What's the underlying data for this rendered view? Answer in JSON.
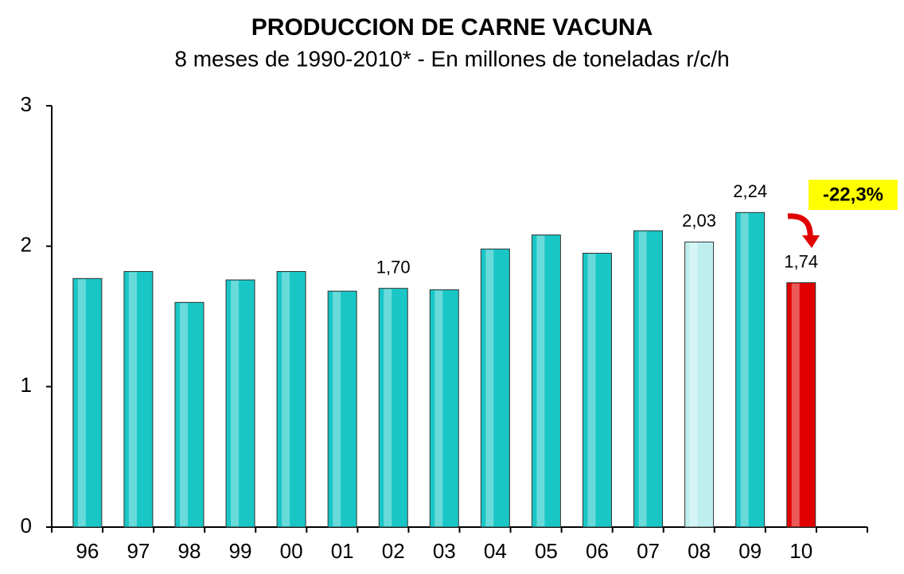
{
  "chart_data": {
    "type": "bar",
    "title": "PRODUCCION DE CARNE VACUNA",
    "subtitle": "8 meses de 1990-2010* - En millones de toneladas r/c/h",
    "categories": [
      "96",
      "97",
      "98",
      "99",
      "00",
      "01",
      "02",
      "03",
      "04",
      "05",
      "06",
      "07",
      "08",
      "09",
      "10"
    ],
    "values": [
      1.77,
      1.82,
      1.6,
      1.76,
      1.82,
      1.68,
      1.7,
      1.69,
      1.98,
      2.08,
      1.95,
      2.11,
      2.03,
      2.24,
      1.74
    ],
    "value_labels": [
      null,
      null,
      null,
      null,
      null,
      null,
      "1,70",
      null,
      null,
      null,
      null,
      null,
      "2,03",
      "2,24",
      "1,74"
    ],
    "colors": [
      "#19c6c6",
      "#19c6c6",
      "#19c6c6",
      "#19c6c6",
      "#19c6c6",
      "#19c6c6",
      "#19c6c6",
      "#19c6c6",
      "#19c6c6",
      "#19c6c6",
      "#19c6c6",
      "#19c6c6",
      "#bfeeee",
      "#19c6c6",
      "#e00000"
    ],
    "ylim": [
      0,
      3
    ],
    "yticks": [
      0,
      1,
      2,
      3
    ],
    "annotation": "-22,3%"
  }
}
